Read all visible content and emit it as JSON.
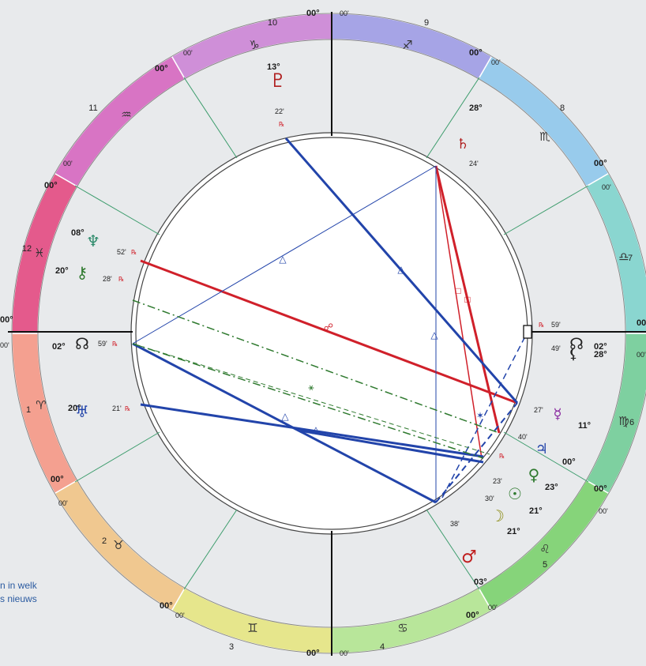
{
  "colors": {
    "background": "#e8eaec",
    "axis": "#111111",
    "house_cusp": "#3c9c6c",
    "trine": "#2244aa",
    "opposition": "#d0202a",
    "square": "#d0202a",
    "sextile": "#2f7a2f",
    "minor_aspect": "#2f7a2f"
  },
  "zodiac_ring_colors": [
    "#d8408a",
    "#e45a8c",
    "#f4a090",
    "#f0c890",
    "#e6e68c",
    "#b8e69a",
    "#7ed27a",
    "#7ed0a0",
    "#8ad6d0",
    "#98cbec",
    "#a6a4e6",
    "#c890dc",
    "#d874c4"
  ],
  "signs": [
    {
      "glyph": "♑",
      "sign": "capricorn"
    },
    {
      "glyph": "♐",
      "sign": "sagittarius"
    },
    {
      "glyph": "♏",
      "sign": "scorpio"
    },
    {
      "glyph": "♎",
      "sign": "libra"
    },
    {
      "glyph": "♍",
      "sign": "virgo"
    },
    {
      "glyph": "♌",
      "sign": "leo"
    },
    {
      "glyph": "♋",
      "sign": "cancer"
    },
    {
      "glyph": "♊",
      "sign": "gemini"
    },
    {
      "glyph": "♉",
      "sign": "taurus"
    },
    {
      "glyph": "♈",
      "sign": "aries"
    },
    {
      "glyph": "♓",
      "sign": "pisces"
    },
    {
      "glyph": "♒",
      "sign": "aquarius"
    }
  ],
  "houses": [
    "10",
    "9",
    "8",
    "7",
    "6",
    "5",
    "4",
    "3",
    "2",
    "1",
    "12",
    "11"
  ],
  "cusps": {
    "mc": {
      "deg": "00°",
      "min": "00'"
    },
    "h9": {
      "deg": "00°",
      "min": "00'"
    },
    "h8": {
      "deg": "00°",
      "min": "00'"
    },
    "desc": {
      "deg": "00°",
      "min": "00'"
    },
    "h6": {
      "deg": "00°",
      "min": "00'"
    },
    "h5": {
      "deg": "00°",
      "min": "00'"
    },
    "ic": {
      "deg": "00°",
      "min": "00'"
    },
    "h3": {
      "deg": "00°",
      "min": "00'"
    },
    "h2": {
      "deg": "00°",
      "min": "00'"
    },
    "asc": {
      "deg": "00°",
      "min": "00'"
    },
    "h12": {
      "deg": "00°",
      "min": "00'"
    },
    "h11": {
      "deg": "00°",
      "min": "00'"
    }
  },
  "planets": [
    {
      "key": "pluto",
      "glyph": "♇",
      "color": "#b02020",
      "deg": "13°",
      "min": "22'",
      "retro": "℞"
    },
    {
      "key": "saturn",
      "glyph": "♄",
      "color": "#b02020",
      "deg": "28°",
      "min": "24'",
      "retro": ""
    },
    {
      "key": "neptune",
      "glyph": "♆",
      "color": "#2c8a6a",
      "deg": "08°",
      "min": "52'",
      "retro": "℞"
    },
    {
      "key": "chiron",
      "glyph": "⚷",
      "color": "#2f7a2f",
      "deg": "20°",
      "min": "28'",
      "retro": "℞"
    },
    {
      "key": "node_asc",
      "glyph": "☊",
      "color": "#222222",
      "deg": "02°",
      "min": "59'",
      "retro": "℞"
    },
    {
      "key": "uranus",
      "glyph": "♅",
      "color": "#2244aa",
      "deg": "20°",
      "min": "21'",
      "retro": "℞"
    },
    {
      "key": "node_desc",
      "glyph": "☊",
      "color": "#222222",
      "deg": "02°",
      "min": "59'",
      "retro": "℞"
    },
    {
      "key": "lilith",
      "glyph": "⚸",
      "color": "#222222",
      "deg": "28°",
      "min": "49'",
      "retro": ""
    },
    {
      "key": "mercury",
      "glyph": "☿",
      "color": "#8a2aa0",
      "deg": "11°",
      "min": "27'",
      "retro": ""
    },
    {
      "key": "jupiter",
      "glyph": "♃",
      "color": "#2244aa",
      "deg": "00°",
      "min": "40'",
      "retro": "℞"
    },
    {
      "key": "venus",
      "glyph": "♀",
      "color": "#2f7a2f",
      "deg": "23°",
      "min": "23'",
      "retro": ""
    },
    {
      "key": "sun",
      "glyph": "☉",
      "color": "#2f7a2f",
      "deg": "21°",
      "min": "30'",
      "retro": ""
    },
    {
      "key": "moon",
      "glyph": "☽",
      "color": "#8a8a10",
      "deg": "21°",
      "min": "30'",
      "retro": ""
    },
    {
      "key": "mars",
      "glyph": "♂",
      "color": "#c02020",
      "deg": "03°",
      "min": "38'",
      "retro": ""
    }
  ],
  "side_note": [
    "n in welk",
    "s nieuws"
  ]
}
